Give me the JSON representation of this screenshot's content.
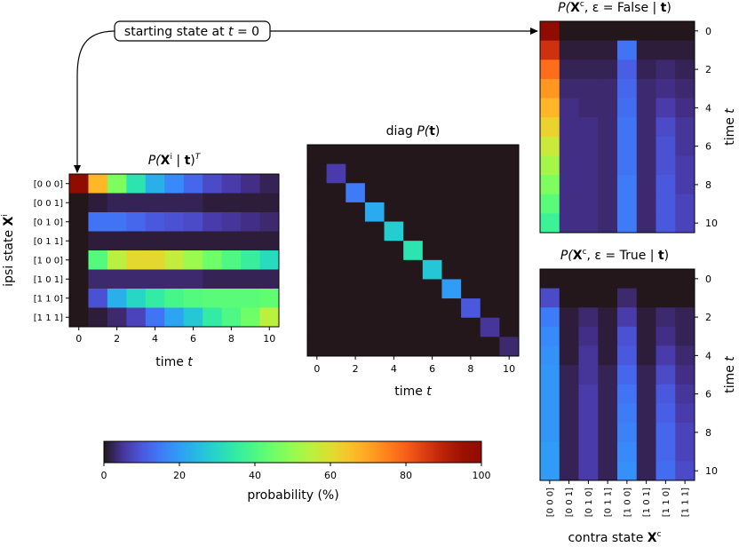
{
  "annotation": {
    "prefix": "starting state at ",
    "t": "t",
    "suffix": " = 0"
  },
  "colors": {
    "arrow": "#000000",
    "frame": "#000000",
    "background": "#ffffff"
  },
  "chart_data": [
    {
      "id": "ipsi",
      "type": "heatmap",
      "title": {
        "a": "P(",
        "b": "X",
        "c": "i",
        "d": " | ",
        "e": "t",
        "f": ")",
        "g": "T"
      },
      "xlabel": {
        "text": "time ",
        "var": "t"
      },
      "ylabel": {
        "text": "ipsi state ",
        "var": "X",
        "sup": "i"
      },
      "x_ticks": [
        0,
        2,
        4,
        6,
        8,
        10
      ],
      "row_labels": [
        "[0 0 0]",
        "[0 0 1]",
        "[0 1 0]",
        "[0 1 1]",
        "[1 0 0]",
        "[1 0 1]",
        "[1 1 0]",
        "[1 1 1]"
      ],
      "x": [
        0,
        1,
        2,
        3,
        4,
        5,
        6,
        7,
        8,
        9,
        10
      ],
      "values_percent": [
        [
          100,
          67,
          47,
          33,
          23,
          17,
          12,
          8,
          6,
          4,
          2
        ],
        [
          0,
          1,
          2,
          2,
          2,
          2,
          2,
          1,
          1,
          1,
          1
        ],
        [
          0,
          14,
          14,
          12,
          10,
          9,
          8,
          6,
          5,
          4,
          3
        ],
        [
          0,
          1,
          1,
          1,
          1,
          1,
          1,
          1,
          1,
          1,
          1
        ],
        [
          0,
          41,
          55,
          61,
          61,
          56,
          51,
          45,
          40,
          36,
          31
        ],
        [
          0,
          3,
          3,
          3,
          3,
          3,
          3,
          2,
          2,
          2,
          2
        ],
        [
          0,
          9,
          23,
          30,
          35,
          39,
          41,
          42,
          42,
          42,
          43
        ],
        [
          0,
          1,
          3,
          7,
          14,
          21,
          27,
          35,
          40,
          45,
          55
        ]
      ]
    },
    {
      "id": "diag",
      "type": "heatmap",
      "title": {
        "a": "diag ",
        "b": "P(",
        "c": "t",
        "d": ")"
      },
      "xlabel": {
        "text": "time ",
        "var": "t"
      },
      "x_ticks": [
        0,
        2,
        4,
        6,
        8,
        10
      ],
      "x": [
        0,
        1,
        2,
        3,
        4,
        5,
        6,
        7,
        8,
        9,
        10
      ],
      "diagonal_values_percent": [
        0,
        6,
        15,
        22,
        28,
        33,
        27,
        20,
        10,
        5,
        3
      ]
    },
    {
      "id": "contra_false",
      "type": "heatmap",
      "title": {
        "a": "P(",
        "b": "X",
        "c": "c",
        "d": ", ε = False | ",
        "e": "t",
        "f": ")"
      },
      "ylabel": {
        "text": "time ",
        "var": "t"
      },
      "y_ticks": [
        0,
        2,
        4,
        6,
        8,
        10
      ],
      "columns": [
        "[0 0 0]",
        "[0 0 1]",
        "[0 1 0]",
        "[0 1 1]",
        "[1 0 0]",
        "[1 0 1]",
        "[1 1 0]",
        "[1 1 1]"
      ],
      "values_percent": [
        [
          100,
          0,
          0,
          0,
          0,
          0,
          0,
          0
        ],
        [
          87,
          1,
          1,
          1,
          14,
          1,
          1,
          1
        ],
        [
          78,
          2,
          2,
          2,
          11,
          2,
          3,
          2
        ],
        [
          72,
          3,
          3,
          3,
          12,
          3,
          4,
          3
        ],
        [
          67,
          4,
          3,
          3,
          13,
          3,
          6,
          4
        ],
        [
          62,
          4,
          4,
          3,
          14,
          3,
          8,
          5
        ],
        [
          57,
          4,
          4,
          3,
          14,
          3,
          9,
          5
        ],
        [
          52,
          4,
          4,
          3,
          14,
          3,
          9,
          6
        ],
        [
          47,
          4,
          4,
          3,
          15,
          3,
          10,
          6
        ],
        [
          42,
          4,
          4,
          3,
          15,
          3,
          10,
          7
        ],
        [
          37,
          4,
          4,
          3,
          15,
          3,
          10,
          7
        ]
      ]
    },
    {
      "id": "contra_true",
      "type": "heatmap",
      "title": {
        "a": "P(",
        "b": "X",
        "c": "c",
        "d": ", ε = True | ",
        "e": "t",
        "f": ")"
      },
      "xlabel": {
        "text": "contra state ",
        "var": "X",
        "sup": "c"
      },
      "ylabel": {
        "text": "time ",
        "var": "t"
      },
      "y_ticks": [
        0,
        2,
        4,
        6,
        8,
        10
      ],
      "columns": [
        "[0 0 0]",
        "[0 0 1]",
        "[0 1 0]",
        "[0 1 1]",
        "[1 0 0]",
        "[1 0 1]",
        "[1 1 0]",
        "[1 1 1]"
      ],
      "values_percent": [
        [
          0,
          0,
          0,
          0,
          0,
          0,
          0,
          0
        ],
        [
          8,
          0,
          0,
          0,
          3,
          0,
          0,
          0
        ],
        [
          15,
          1,
          3,
          1,
          6,
          1,
          3,
          2
        ],
        [
          17,
          1,
          4,
          1,
          9,
          1,
          4,
          2
        ],
        [
          18,
          1,
          5,
          1,
          10,
          1,
          6,
          3
        ],
        [
          19,
          2,
          5,
          2,
          12,
          2,
          8,
          4
        ],
        [
          19,
          2,
          6,
          2,
          14,
          2,
          10,
          5
        ],
        [
          19,
          2,
          6,
          2,
          15,
          2,
          11,
          6
        ],
        [
          19,
          2,
          6,
          2,
          16,
          2,
          12,
          7
        ],
        [
          20,
          2,
          6,
          2,
          17,
          2,
          12,
          7
        ],
        [
          20,
          2,
          6,
          2,
          18,
          2,
          13,
          8
        ]
      ]
    },
    {
      "id": "colorbar",
      "type": "colorbar",
      "label": "probability (%)",
      "range": [
        0,
        100
      ],
      "ticks": [
        0,
        20,
        40,
        60,
        80,
        100
      ]
    }
  ]
}
